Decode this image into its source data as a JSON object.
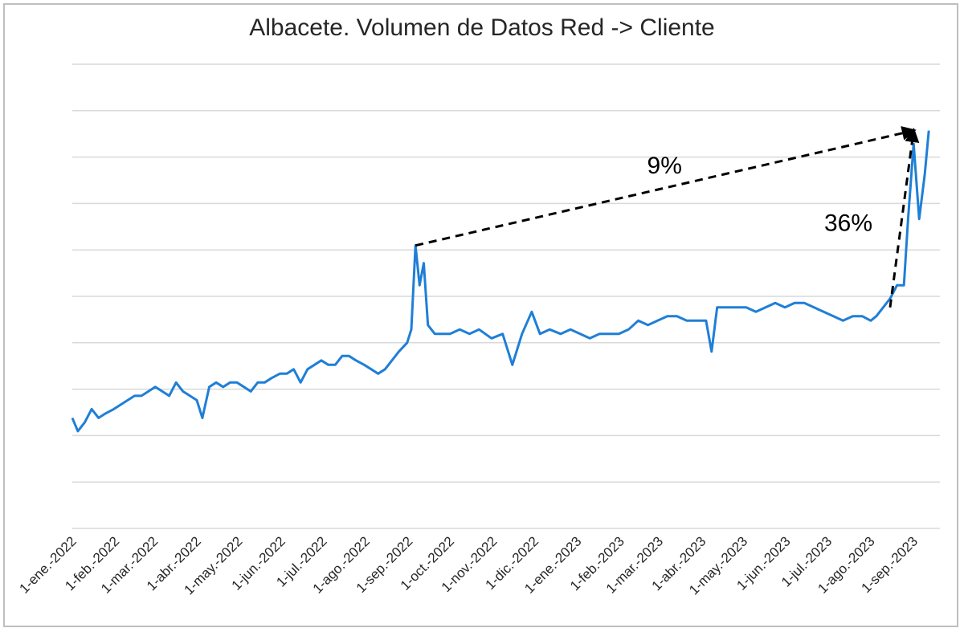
{
  "chart_data": {
    "type": "line",
    "title": "Albacete. Volumen de Datos Red -> Cliente",
    "xlabel": "",
    "ylabel": "",
    "y_axis_labels_shown": false,
    "grid": "horizontal",
    "legend": "none",
    "line_color": "#1f7fd6",
    "x_ticks": [
      "1-ene.-2022",
      "1-feb.-2022",
      "1-mar.-2022",
      "1-abr.-2022",
      "1-may.-2022",
      "1-jun.-2022",
      "1-jul.-2022",
      "1-ago.-2022",
      "1-sep.-2022",
      "1-oct.-2022",
      "1-nov.-2022",
      "1-dic.-2022",
      "1-ene.-2023",
      "1-feb.-2023",
      "1-mar.-2023",
      "1-abr.-2023",
      "1-may.-2023",
      "1-jun.-2023",
      "1-jul.-2023",
      "1-ago.-2023",
      "1-sep.-2023"
    ],
    "x_range": [
      "2022-01-01",
      "2023-09-20"
    ],
    "ylim": [
      0,
      105
    ],
    "series": [
      {
        "points": [
          [
            "2022-01-01",
            25
          ],
          [
            "2022-01-05",
            22
          ],
          [
            "2022-01-10",
            24
          ],
          [
            "2022-01-15",
            27
          ],
          [
            "2022-01-20",
            25
          ],
          [
            "2022-01-25",
            26
          ],
          [
            "2022-01-31",
            27
          ],
          [
            "2022-02-05",
            28
          ],
          [
            "2022-02-10",
            29
          ],
          [
            "2022-02-15",
            30
          ],
          [
            "2022-02-20",
            30
          ],
          [
            "2022-02-25",
            31
          ],
          [
            "2022-03-02",
            32
          ],
          [
            "2022-03-07",
            31
          ],
          [
            "2022-03-12",
            30
          ],
          [
            "2022-03-17",
            33
          ],
          [
            "2022-03-22",
            31
          ],
          [
            "2022-03-27",
            30
          ],
          [
            "2022-04-01",
            29
          ],
          [
            "2022-04-05",
            25
          ],
          [
            "2022-04-10",
            32
          ],
          [
            "2022-04-15",
            33
          ],
          [
            "2022-04-20",
            32
          ],
          [
            "2022-04-25",
            33
          ],
          [
            "2022-04-30",
            33
          ],
          [
            "2022-05-05",
            32
          ],
          [
            "2022-05-10",
            31
          ],
          [
            "2022-05-15",
            33
          ],
          [
            "2022-05-20",
            33
          ],
          [
            "2022-05-25",
            34
          ],
          [
            "2022-05-31",
            35
          ],
          [
            "2022-06-05",
            35
          ],
          [
            "2022-06-10",
            36
          ],
          [
            "2022-06-15",
            33
          ],
          [
            "2022-06-20",
            36
          ],
          [
            "2022-06-25",
            37
          ],
          [
            "2022-06-30",
            38
          ],
          [
            "2022-07-05",
            37
          ],
          [
            "2022-07-10",
            37
          ],
          [
            "2022-07-15",
            39
          ],
          [
            "2022-07-20",
            39
          ],
          [
            "2022-07-25",
            38
          ],
          [
            "2022-07-31",
            37
          ],
          [
            "2022-08-05",
            36
          ],
          [
            "2022-08-10",
            35
          ],
          [
            "2022-08-15",
            36
          ],
          [
            "2022-08-20",
            38
          ],
          [
            "2022-08-25",
            40
          ],
          [
            "2022-08-31",
            42
          ],
          [
            "2022-09-03",
            45
          ],
          [
            "2022-09-06",
            64
          ],
          [
            "2022-09-09",
            55
          ],
          [
            "2022-09-12",
            60
          ],
          [
            "2022-09-15",
            46
          ],
          [
            "2022-09-20",
            44
          ],
          [
            "2022-09-25",
            44
          ],
          [
            "2022-10-01",
            44
          ],
          [
            "2022-10-08",
            45
          ],
          [
            "2022-10-15",
            44
          ],
          [
            "2022-10-22",
            45
          ],
          [
            "2022-10-31",
            43
          ],
          [
            "2022-11-08",
            44
          ],
          [
            "2022-11-15",
            37
          ],
          [
            "2022-11-22",
            44
          ],
          [
            "2022-11-29",
            49
          ],
          [
            "2022-12-05",
            44
          ],
          [
            "2022-12-12",
            45
          ],
          [
            "2022-12-20",
            44
          ],
          [
            "2022-12-27",
            45
          ],
          [
            "2023-01-03",
            44
          ],
          [
            "2023-01-10",
            43
          ],
          [
            "2023-01-17",
            44
          ],
          [
            "2023-01-24",
            44
          ],
          [
            "2023-01-31",
            44
          ],
          [
            "2023-02-07",
            45
          ],
          [
            "2023-02-14",
            47
          ],
          [
            "2023-02-21",
            46
          ],
          [
            "2023-02-28",
            47
          ],
          [
            "2023-03-07",
            48
          ],
          [
            "2023-03-14",
            48
          ],
          [
            "2023-03-21",
            47
          ],
          [
            "2023-03-28",
            47
          ],
          [
            "2023-04-04",
            47
          ],
          [
            "2023-04-08",
            40
          ],
          [
            "2023-04-12",
            50
          ],
          [
            "2023-04-19",
            50
          ],
          [
            "2023-04-26",
            50
          ],
          [
            "2023-05-03",
            50
          ],
          [
            "2023-05-10",
            49
          ],
          [
            "2023-05-17",
            50
          ],
          [
            "2023-05-24",
            51
          ],
          [
            "2023-05-31",
            50
          ],
          [
            "2023-06-07",
            51
          ],
          [
            "2023-06-14",
            51
          ],
          [
            "2023-06-21",
            50
          ],
          [
            "2023-06-28",
            49
          ],
          [
            "2023-07-05",
            48
          ],
          [
            "2023-07-12",
            47
          ],
          [
            "2023-07-19",
            48
          ],
          [
            "2023-07-26",
            48
          ],
          [
            "2023-08-01",
            47
          ],
          [
            "2023-08-05",
            48
          ],
          [
            "2023-08-10",
            50
          ],
          [
            "2023-08-15",
            52
          ],
          [
            "2023-08-20",
            55
          ],
          [
            "2023-08-25",
            55
          ],
          [
            "2023-08-28",
            70
          ],
          [
            "2023-09-01",
            87
          ],
          [
            "2023-09-05",
            70
          ],
          [
            "2023-09-09",
            80
          ],
          [
            "2023-09-12",
            90
          ]
        ]
      }
    ],
    "annotations": [
      {
        "text": "9%",
        "from": [
          "2022-09-06",
          64
        ],
        "to": [
          "2023-09-01",
          90
        ]
      },
      {
        "text": "36%",
        "from": [
          "2023-08-15",
          50
        ],
        "to": [
          "2023-09-01",
          90
        ]
      }
    ]
  }
}
